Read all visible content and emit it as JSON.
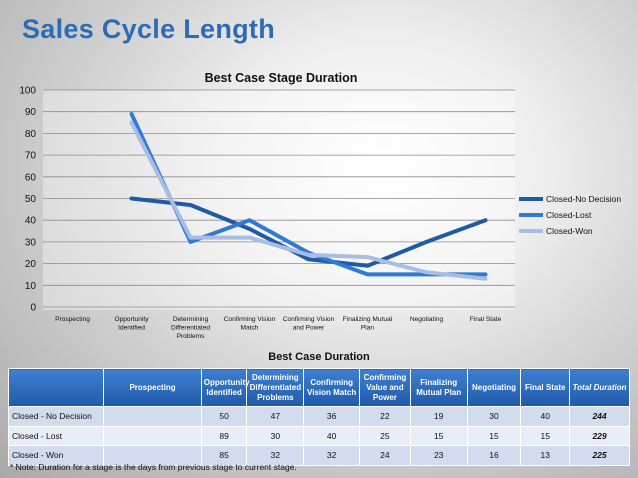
{
  "slide_title": "Sales Cycle Length",
  "chart_data": {
    "type": "line",
    "title": "Best Case Stage Duration",
    "xlabel": "",
    "ylabel": "",
    "ylim": [
      0,
      100
    ],
    "yticks": [
      0,
      10,
      20,
      30,
      40,
      50,
      60,
      70,
      80,
      90,
      100
    ],
    "categories": [
      "Prospecting",
      "Opportunity\nIdentified",
      "Determining\nDifferentiated\nProblems",
      "Confirming Vision\nMatch",
      "Confirming Vision\nand Power",
      "Finalizing Mutual\nPlan",
      "Negotiating",
      "Final State"
    ],
    "series": [
      {
        "name": "Closed-No Decision",
        "color": "#1f5aa8",
        "values": [
          null,
          50,
          47,
          36,
          22,
          19,
          30,
          40
        ]
      },
      {
        "name": "Closed-Lost",
        "color": "#2e7ad6",
        "values": [
          null,
          89,
          30,
          40,
          25,
          15,
          15,
          15
        ]
      },
      {
        "name": "Closed-Won",
        "color": "#a8bce6",
        "values": [
          null,
          85,
          32,
          32,
          24,
          23,
          16,
          13
        ]
      }
    ],
    "grid": true,
    "legend": "right"
  },
  "table": {
    "title": "Best Case Duration",
    "headers": [
      "",
      "Prospecting",
      "Opportunity Identified",
      "Determining Differentiated Problems",
      "Confirming Vision Match",
      "Confirming Value and Power",
      "Finalizing Mutual Plan",
      "Negotiating",
      "Final State",
      "Total Duration"
    ],
    "rows": [
      [
        "Closed - No Decision",
        "",
        "50",
        "47",
        "36",
        "22",
        "19",
        "30",
        "40",
        "244"
      ],
      [
        "Closed - Lost",
        "",
        "89",
        "30",
        "40",
        "25",
        "15",
        "15",
        "15",
        "229"
      ],
      [
        "Closed - Won",
        "",
        "85",
        "32",
        "32",
        "24",
        "23",
        "16",
        "13",
        "225"
      ]
    ]
  },
  "note": "* Note: Duration for a stage is the days from previous stage to current stage."
}
